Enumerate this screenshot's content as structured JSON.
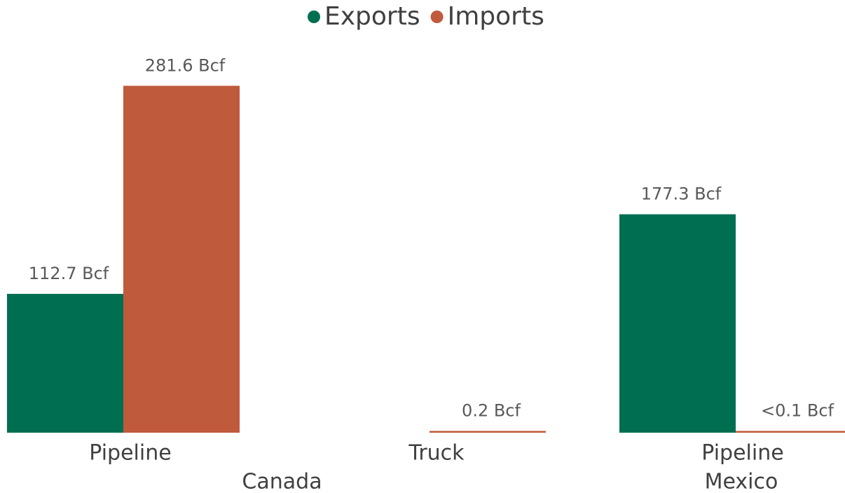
{
  "chart_data": {
    "type": "bar",
    "categories": [
      "Pipeline",
      "Truck",
      "Pipeline"
    ],
    "groups": [
      {
        "label": "Canada",
        "span": 2
      },
      {
        "label": "Mexico",
        "span": 1
      }
    ],
    "series": [
      {
        "name": "Exports",
        "color": "#006f51",
        "values": [
          112.7,
          null,
          177.3
        ],
        "value_labels": [
          "112.7 Bcf",
          null,
          "177.3 Bcf"
        ]
      },
      {
        "name": "Imports",
        "color": "#c05a3c",
        "values": [
          281.6,
          0.2,
          0.05
        ],
        "value_labels": [
          "281.6 Bcf",
          "0.2 Bcf",
          "<0.1 Bcf"
        ]
      }
    ],
    "ylim": [
      0,
      300
    ],
    "legend": "top"
  }
}
